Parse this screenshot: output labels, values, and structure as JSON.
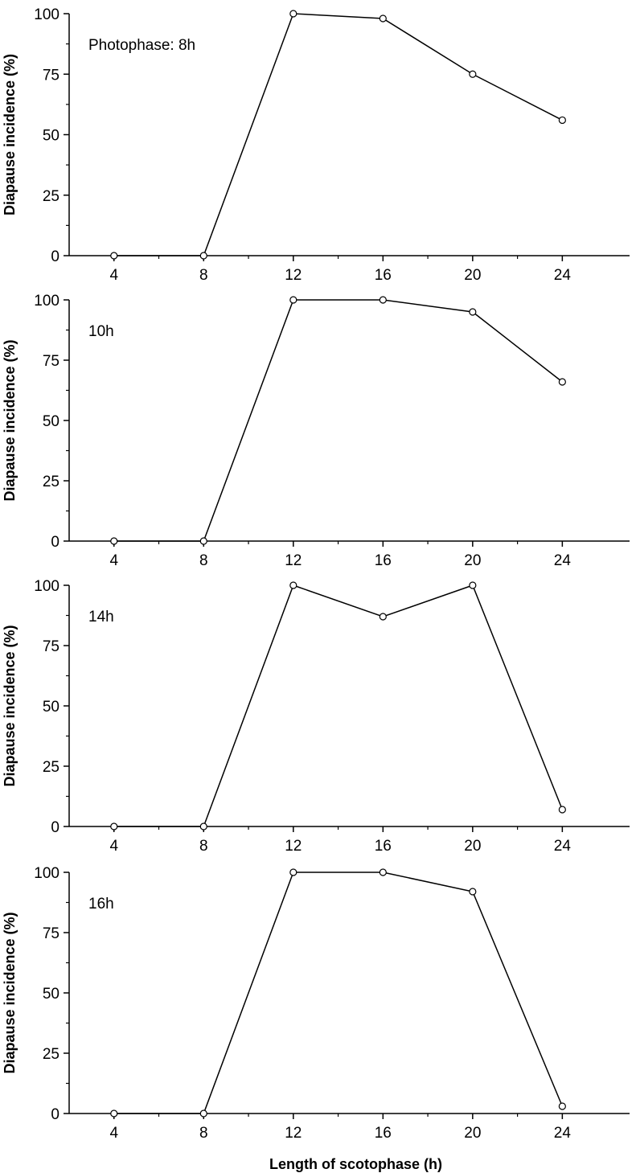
{
  "chart_data": [
    {
      "type": "line",
      "annotation": "Photophase: 8h",
      "ylabel": "Diapause incidence (%)",
      "xlabel": "",
      "x": [
        4,
        8,
        12,
        16,
        20,
        24
      ],
      "y": [
        0,
        0,
        100,
        98,
        75,
        56
      ],
      "xticks": [
        "4",
        "8",
        "12",
        "16",
        "20",
        "24"
      ],
      "yticks": [
        "0",
        "25",
        "50",
        "75",
        "100"
      ],
      "xlim": [
        2,
        27
      ],
      "ylim": [
        0,
        100
      ]
    },
    {
      "type": "line",
      "annotation": "10h",
      "ylabel": "Diapause incidence (%)",
      "xlabel": "",
      "x": [
        4,
        8,
        12,
        16,
        20,
        24
      ],
      "y": [
        0,
        0,
        100,
        100,
        95,
        66
      ],
      "xticks": [
        "4",
        "8",
        "12",
        "16",
        "20",
        "24"
      ],
      "yticks": [
        "0",
        "25",
        "50",
        "75",
        "100"
      ],
      "xlim": [
        2,
        27
      ],
      "ylim": [
        0,
        100
      ]
    },
    {
      "type": "line",
      "annotation": "14h",
      "ylabel": "Diapause incidence (%)",
      "xlabel": "",
      "x": [
        4,
        8,
        12,
        16,
        20,
        24
      ],
      "y": [
        0,
        0,
        100,
        87,
        100,
        7
      ],
      "xticks": [
        "4",
        "8",
        "12",
        "16",
        "20",
        "24"
      ],
      "yticks": [
        "0",
        "25",
        "50",
        "75",
        "100"
      ],
      "xlim": [
        2,
        27
      ],
      "ylim": [
        0,
        100
      ]
    },
    {
      "type": "line",
      "annotation": "16h",
      "ylabel": "Diapause incidence (%)",
      "xlabel": "Length of scotophase (h)",
      "x": [
        4,
        8,
        12,
        16,
        20,
        24
      ],
      "y": [
        0,
        0,
        100,
        100,
        92,
        3
      ],
      "xticks": [
        "4",
        "8",
        "12",
        "16",
        "20",
        "24"
      ],
      "yticks": [
        "0",
        "25",
        "50",
        "75",
        "100"
      ],
      "xlim": [
        2,
        27
      ],
      "ylim": [
        0,
        100
      ]
    }
  ]
}
